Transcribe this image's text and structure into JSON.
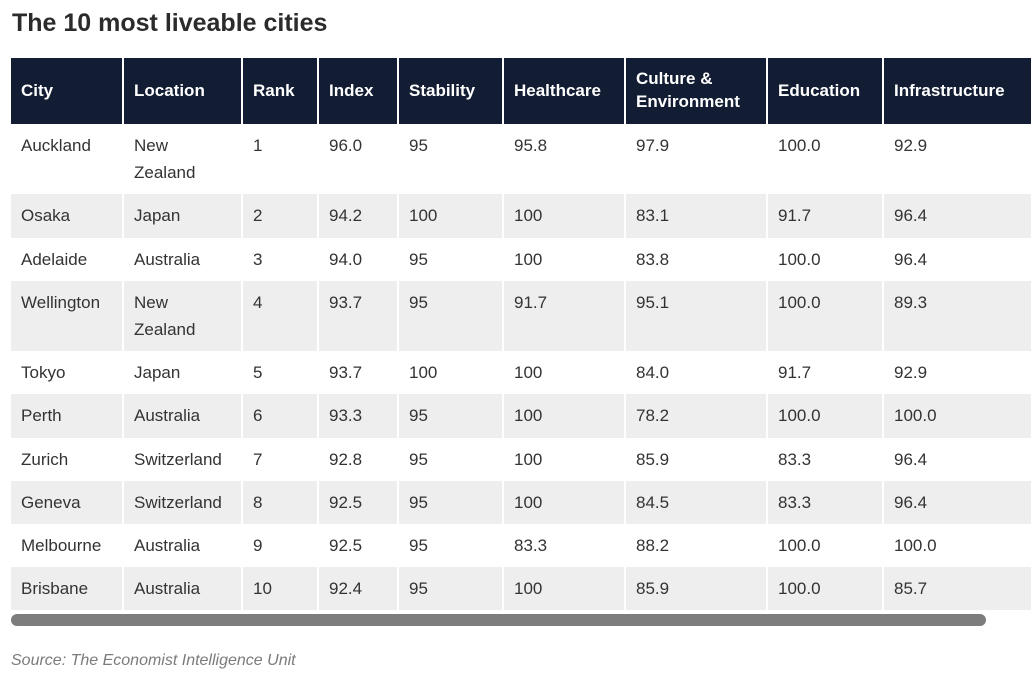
{
  "title": "The 10 most liveable cities",
  "source": "Source: The Economist Intelligence Unit",
  "colors": {
    "header_bg": "#121c33",
    "header_text": "#ffffff",
    "row_alt_bg": "#eeeeee",
    "title_text": "#2b2b2b",
    "cell_text": "#333333",
    "scrollbar_thumb": "#7d7d7d",
    "source_text": "#7b7b7b"
  },
  "chart_data": {
    "type": "table",
    "title": "The 10 most liveable cities",
    "source": "Source: The Economist Intelligence Unit",
    "columns": [
      "City",
      "Location",
      "Rank",
      "Index",
      "Stability",
      "Healthcare",
      "Culture & Environment",
      "Education",
      "Infrastructure"
    ],
    "rows": [
      [
        "Auckland",
        "New Zealand",
        "1",
        "96.0",
        "95",
        "95.8",
        "97.9",
        "100.0",
        "92.9"
      ],
      [
        "Osaka",
        "Japan",
        "2",
        "94.2",
        "100",
        "100",
        "83.1",
        "91.7",
        "96.4"
      ],
      [
        "Adelaide",
        "Australia",
        "3",
        "94.0",
        "95",
        "100",
        "83.8",
        "100.0",
        "96.4"
      ],
      [
        "Wellington",
        "New Zealand",
        "4",
        "93.7",
        "95",
        "91.7",
        "95.1",
        "100.0",
        "89.3"
      ],
      [
        "Tokyo",
        "Japan",
        "5",
        "93.7",
        "100",
        "100",
        "84.0",
        "91.7",
        "92.9"
      ],
      [
        "Perth",
        "Australia",
        "6",
        "93.3",
        "95",
        "100",
        "78.2",
        "100.0",
        "100.0"
      ],
      [
        "Zurich",
        "Switzerland",
        "7",
        "92.8",
        "95",
        "100",
        "85.9",
        "83.3",
        "96.4"
      ],
      [
        "Geneva",
        "Switzerland",
        "8",
        "92.5",
        "95",
        "100",
        "84.5",
        "83.3",
        "96.4"
      ],
      [
        "Melbourne",
        "Australia",
        "9",
        "92.5",
        "95",
        "83.3",
        "88.2",
        "100.0",
        "100.0"
      ],
      [
        "Brisbane",
        "Australia",
        "10",
        "92.4",
        "95",
        "100",
        "85.9",
        "100.0",
        "85.7"
      ]
    ],
    "layout": {
      "row_striping": "even rows gray",
      "header_style": "dark navy, white bold text",
      "horizontal_scrollbar": true
    }
  }
}
